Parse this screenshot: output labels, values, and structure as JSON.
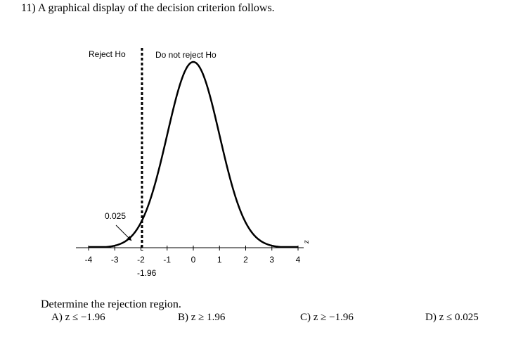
{
  "question": {
    "number": "11)",
    "text": "A graphical display of the decision criterion follows."
  },
  "figure": {
    "region_labels": {
      "reject": "Reject Ho",
      "not_reject": "Do not reject Ho"
    },
    "tail_area_label": "0.025",
    "critical_value_label": "-1.96",
    "axis_variable": "z"
  },
  "chart_data": {
    "type": "line",
    "title": "",
    "xlabel": "z",
    "ylabel": "",
    "xlim": [
      -4,
      4
    ],
    "x_ticks": [
      "-4",
      "-3",
      "-2",
      "-1",
      "0",
      "1",
      "2",
      "3",
      "4"
    ],
    "series": [
      {
        "distribution": "standard normal",
        "mean": 0,
        "sd": 1
      }
    ],
    "critical_value": -1.96,
    "tail_area": 0.025,
    "annotations": [
      "Reject Ho",
      "Do not reject Ho",
      "0.025",
      "-1.96"
    ]
  },
  "prompt": "Determine the rejection region.",
  "choices": [
    {
      "letter": "A)",
      "text": "z ≤ −1.96"
    },
    {
      "letter": "B)",
      "text": "z ≥ 1.96"
    },
    {
      "letter": "C)",
      "text": "z ≥ −1.96"
    },
    {
      "letter": "D)",
      "text": "z ≤ 0.025"
    }
  ]
}
